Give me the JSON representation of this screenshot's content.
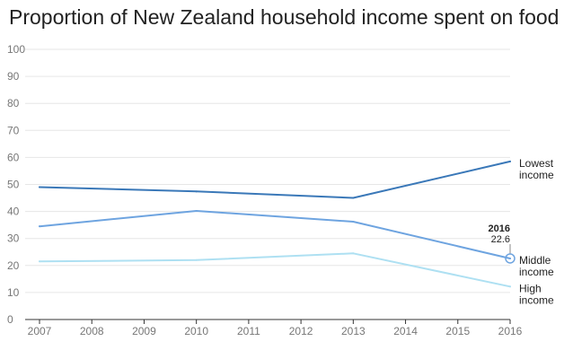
{
  "chart_data": {
    "type": "line",
    "title": "Proportion of New Zealand household income spent on food",
    "xlabel": "",
    "ylabel": "",
    "x": [
      2007,
      2008,
      2009,
      2010,
      2011,
      2012,
      2013,
      2014,
      2015,
      2016
    ],
    "x_tick_labels": [
      "2007",
      "2008",
      "2009",
      "2010",
      "2011",
      "2012",
      "2013",
      "2014",
      "2015",
      "2016"
    ],
    "ylim": [
      0,
      100
    ],
    "y_ticks": [
      0,
      10,
      20,
      30,
      40,
      50,
      60,
      70,
      80,
      90,
      100
    ],
    "grid": "horizontal",
    "legend": "inline labels at line ends",
    "series": [
      {
        "name": "Lowest income",
        "label_lines": [
          "Lowest",
          "income"
        ],
        "color": "#3a78b8",
        "points": [
          [
            2007,
            49
          ],
          [
            2010,
            47.4
          ],
          [
            2013,
            45
          ],
          [
            2016,
            58.5
          ]
        ]
      },
      {
        "name": "Middle income",
        "label_lines": [
          "Middle",
          "income"
        ],
        "color": "#6ea4e0",
        "points": [
          [
            2007,
            34.5
          ],
          [
            2010,
            40.2
          ],
          [
            2013,
            36.2
          ],
          [
            2016,
            22.6
          ]
        ]
      },
      {
        "name": "High income",
        "label_lines": [
          "High",
          "income"
        ],
        "color": "#aee0f2",
        "points": [
          [
            2007,
            21.5
          ],
          [
            2010,
            22
          ],
          [
            2013,
            24.5
          ],
          [
            2016,
            12.2
          ]
        ]
      }
    ],
    "annotation": {
      "series": "Middle income",
      "x": 2016,
      "y": 22.6,
      "year_text": "2016",
      "value_text": "22.6"
    }
  }
}
